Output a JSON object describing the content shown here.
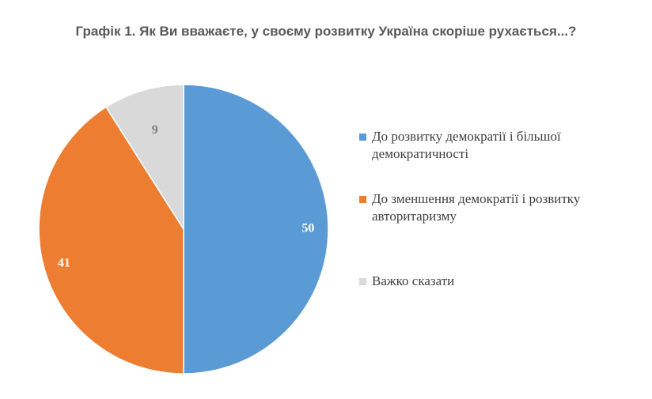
{
  "title": "Графік 1. Як Ви вважаєте, у своєму розвитку Україна скоріше рухається...?",
  "chart_data": {
    "type": "pie",
    "title": "Графік 1. Як Ви вважаєте, у своєму розвитку Україна скоріше рухається...?",
    "categories": [
      "До розвитку демократії і більшої демократичності",
      "До зменшення демократії і розвитку авторитаризму",
      "Важко сказати"
    ],
    "values": [
      50,
      41,
      9
    ],
    "data_labels": [
      "50",
      "41",
      "9"
    ],
    "colors": [
      "#5b9bd5",
      "#ed7d31",
      "#d9d9d9"
    ],
    "label_colors": [
      "#ffffff",
      "#ffffff",
      "#7f7f7f"
    ],
    "legend_position": "right"
  }
}
